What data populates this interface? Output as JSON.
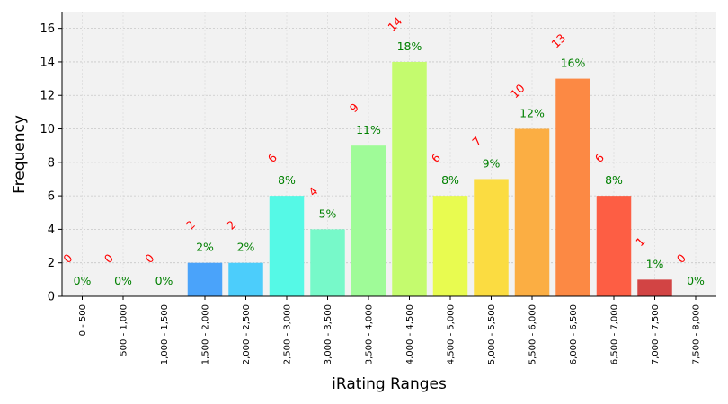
{
  "chart_data": {
    "type": "bar",
    "title": "",
    "xlabel": "iRating Ranges",
    "ylabel": "Frequency",
    "ylim": [
      0,
      17
    ],
    "yticks": [
      0,
      2,
      4,
      6,
      8,
      10,
      12,
      14,
      16
    ],
    "grid": true,
    "categories": [
      "0 - 500",
      "500 - 1,000",
      "1,000 - 1,500",
      "1,500 - 2,000",
      "2,000 - 2,500",
      "2,500 - 3,000",
      "3,000 - 3,500",
      "3,500 - 4,000",
      "4,000 - 4,500",
      "4,500 - 5,000",
      "5,000 - 5,500",
      "5,500 - 6,000",
      "6,000 - 6,500",
      "6,500 - 7,000",
      "7,000 - 7,500",
      "7,500 - 8,000"
    ],
    "values": [
      0,
      0,
      0,
      2,
      2,
      6,
      4,
      9,
      14,
      6,
      7,
      10,
      13,
      6,
      1,
      0
    ],
    "count_labels": [
      "0",
      "0",
      "0",
      "2",
      "2",
      "6",
      "4",
      "9",
      "14",
      "6",
      "7",
      "10",
      "13",
      "6",
      "1",
      "0"
    ],
    "percent_labels": [
      "0%",
      "0%",
      "0%",
      "2%",
      "2%",
      "8%",
      "5%",
      "11%",
      "18%",
      "8%",
      "9%",
      "12%",
      "16%",
      "8%",
      "1%",
      "0%"
    ],
    "colors": [
      "#3a3adb",
      "#2f5ff0",
      "#2d83f5",
      "#4aa3fa",
      "#4ccdfb",
      "#55f9e6",
      "#77f9c9",
      "#9ffb98",
      "#c4fb6e",
      "#e8fb50",
      "#fbdc41",
      "#fbae43",
      "#fc8944",
      "#fd5e44",
      "#d24444",
      "#a03030"
    ],
    "background_color": "#f2f2f2",
    "count_label_color": "#ff0000",
    "percent_label_color": "#008000"
  }
}
